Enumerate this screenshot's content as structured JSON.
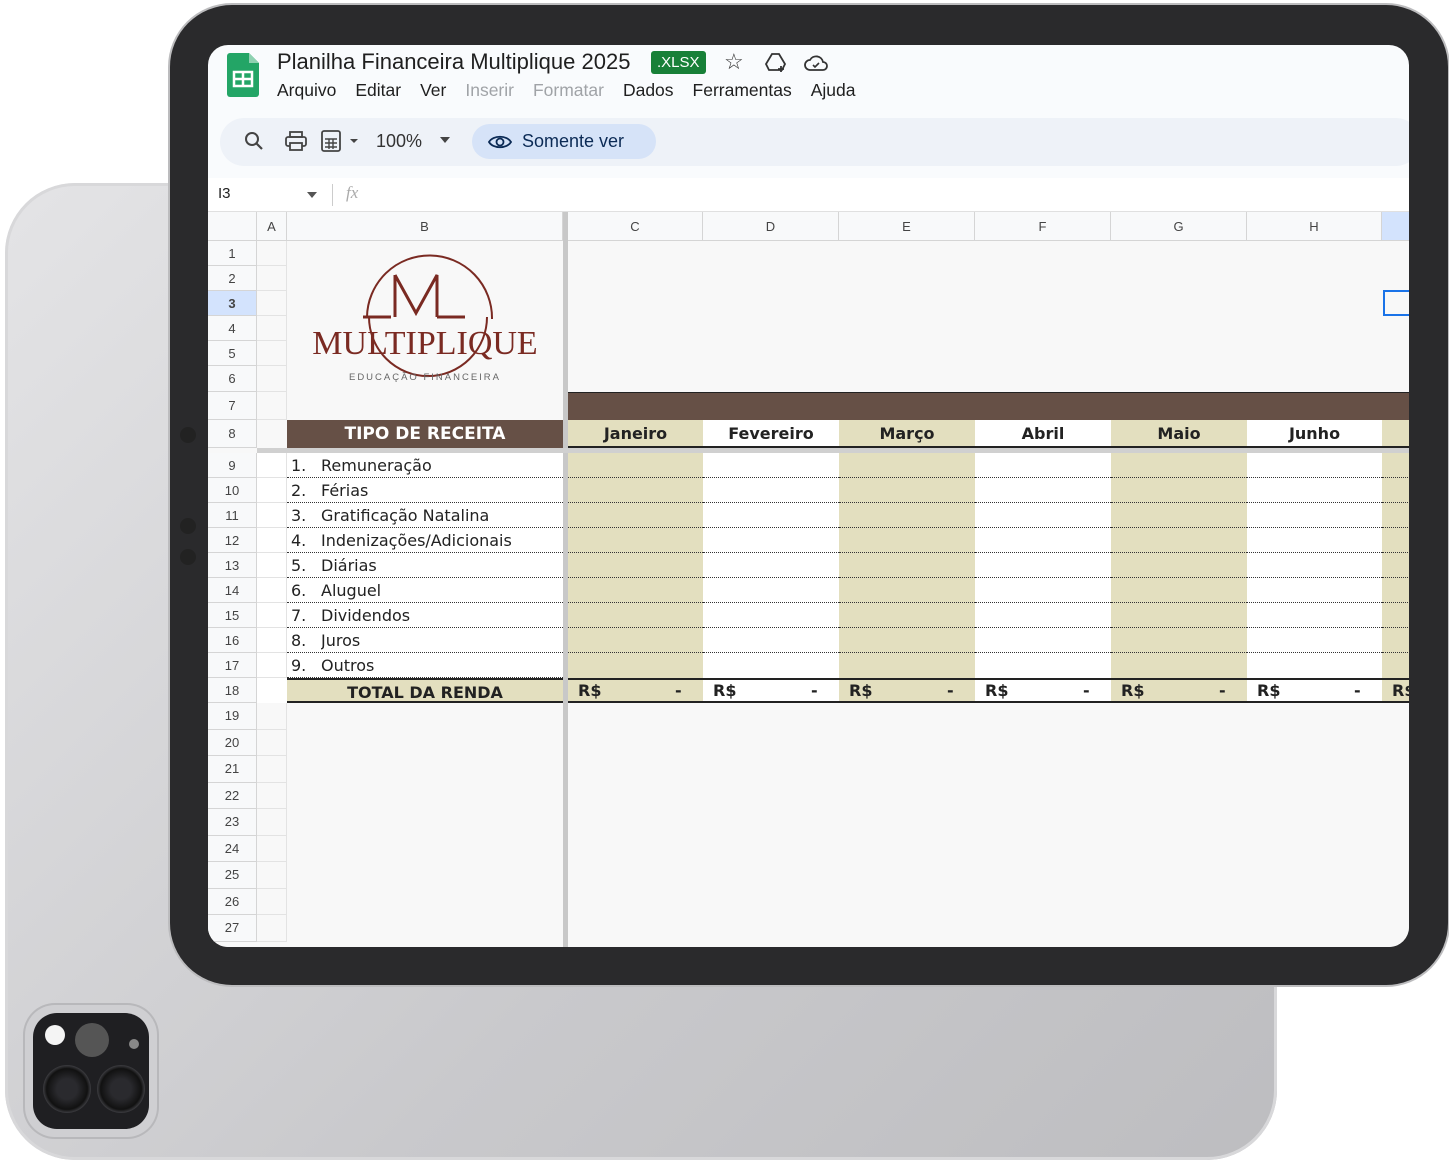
{
  "doc": {
    "title": "Planilha Financeira Multiplique 2025",
    "badge": ".XLSX"
  },
  "menu": [
    {
      "label": "Arquivo",
      "enabled": true
    },
    {
      "label": "Editar",
      "enabled": true
    },
    {
      "label": "Ver",
      "enabled": true
    },
    {
      "label": "Inserir",
      "enabled": false
    },
    {
      "label": "Formatar",
      "enabled": false
    },
    {
      "label": "Dados",
      "enabled": true
    },
    {
      "label": "Ferramentas",
      "enabled": true
    },
    {
      "label": "Ajuda",
      "enabled": true
    }
  ],
  "toolbar": {
    "zoom": "100%",
    "mode": "Somente ver"
  },
  "formula": {
    "cell_ref": "I3",
    "fx": "fx"
  },
  "columns": [
    "A",
    "B",
    "C",
    "D",
    "E",
    "F",
    "G",
    "H",
    ""
  ],
  "rows": [
    "1",
    "2",
    "3",
    "4",
    "5",
    "6",
    "7",
    "8",
    "9",
    "10",
    "11",
    "12",
    "13",
    "14",
    "15",
    "16",
    "17",
    "18",
    "19",
    "20",
    "21",
    "22",
    "23",
    "24",
    "25",
    "26",
    "27"
  ],
  "logo": {
    "brand": "MULTIPLIQUE",
    "tagline": "EDUCAÇÃO FINANCEIRA"
  },
  "sheet": {
    "header": "TIPO DE RECEITA",
    "months": [
      "Janeiro",
      "Fevereiro",
      "Março",
      "Abril",
      "Maio",
      "Junho"
    ],
    "items": [
      {
        "n": "1.",
        "label": "Remuneração"
      },
      {
        "n": "2.",
        "label": "Férias"
      },
      {
        "n": "3.",
        "label": "Gratificação Natalina"
      },
      {
        "n": "4.",
        "label": "Indenizações/Adicionais"
      },
      {
        "n": "5.",
        "label": "Diárias"
      },
      {
        "n": "6.",
        "label": "Aluguel"
      },
      {
        "n": "7.",
        "label": "Dividendos"
      },
      {
        "n": "8.",
        "label": "Juros"
      },
      {
        "n": "9.",
        "label": "Outros"
      }
    ],
    "total_label": "TOTAL DA RENDA",
    "currency": "R$",
    "total_value": "-"
  },
  "colors": {
    "brown": "#665046",
    "beige": "#e3dfbf",
    "accent": "#1a73e8",
    "logo": "#7a2a22"
  }
}
